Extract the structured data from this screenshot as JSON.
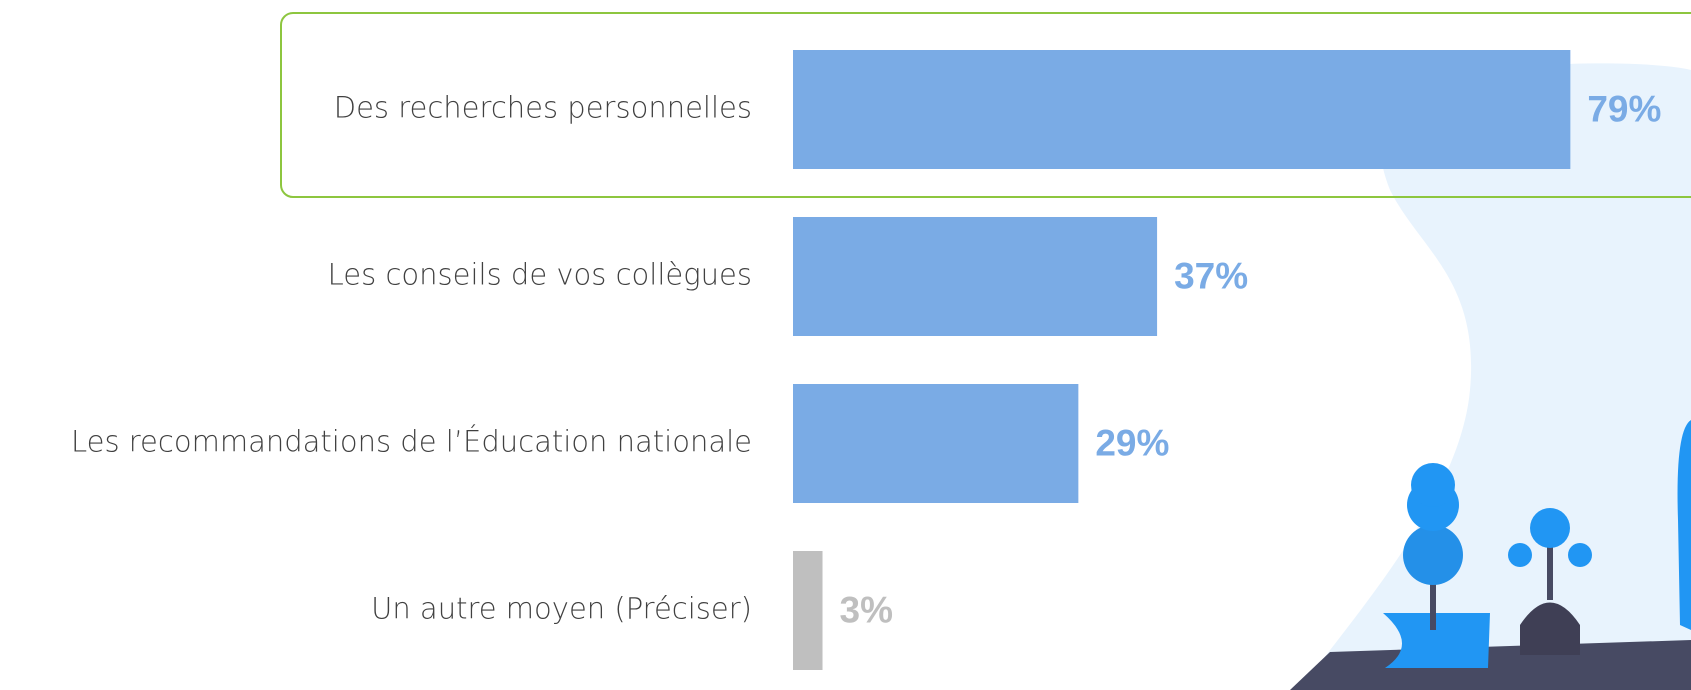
{
  "chart_data": {
    "type": "bar",
    "orientation": "horizontal",
    "categories": [
      "Des recherches personnelles",
      "Les conseils de vos collègues",
      "Les recommandations de l’Éducation nationale",
      "Un autre moyen (Préciser)"
    ],
    "values": [
      79,
      37,
      29,
      3
    ],
    "value_labels": [
      "79%",
      "37%",
      "29%",
      "3%"
    ],
    "colors": [
      "#7aabe5",
      "#7aabe5",
      "#7aabe5",
      "#bfbfbf"
    ]
  }
}
